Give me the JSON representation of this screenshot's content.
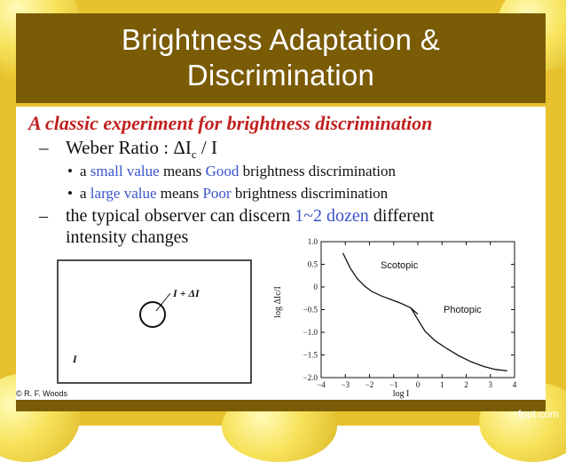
{
  "title_line1": "Brightness Adaptation &",
  "title_line2": "Discrimination",
  "headline": "A classic experiment for brightness discrimination",
  "bullets": {
    "weber": "Weber Ratio : ΔI",
    "weber_sub": "c",
    "weber_tail": " / I",
    "small_pre": "a ",
    "small_hl": "small value",
    "small_mid": " means ",
    "small_hl2": "Good",
    "small_post": " brightness discrimination",
    "large_pre": "a ",
    "large_hl": "large value",
    "large_mid": " means ",
    "large_hl2": "Poor",
    "large_post": " brightness discrimination",
    "observer_pre": "the typical observer can discern ",
    "observer_hl": "1~2 dozen",
    "observer_post": " different",
    "observer_line2": "intensity changes"
  },
  "diagram": {
    "inner_label": "I + ΔI",
    "outer_label": "I"
  },
  "footer_credit": "© R. F. Woods",
  "brand": "fppt.com",
  "chart_data": {
    "type": "line",
    "xlabel": "log I",
    "ylabel": "log ΔIc/I",
    "xlim": [
      -4,
      4
    ],
    "ylim": [
      -2.0,
      1.0
    ],
    "xticks": [
      "-4",
      "-3",
      "-2",
      "-1",
      "0",
      "1",
      "2",
      "3",
      "4"
    ],
    "yticks": [
      "1.0",
      "0.5",
      "0",
      "-0.5",
      "-1.0",
      "-1.5",
      "-2.0"
    ],
    "series": [
      {
        "name": "Scotopic",
        "x": [
          -3.1,
          -2.8,
          -2.5,
          -2.2,
          -1.9,
          -1.5,
          -1.1,
          -0.7,
          -0.3,
          0.0
        ],
        "y": [
          0.75,
          0.42,
          0.18,
          0.02,
          -0.1,
          -0.2,
          -0.28,
          -0.36,
          -0.46,
          -0.6
        ]
      },
      {
        "name": "Photopic",
        "x": [
          -0.3,
          0.0,
          0.3,
          0.7,
          1.2,
          1.7,
          2.2,
          2.7,
          3.2,
          3.7
        ],
        "y": [
          -0.45,
          -0.72,
          -0.98,
          -1.18,
          -1.36,
          -1.52,
          -1.65,
          -1.75,
          -1.82,
          -1.85
        ]
      }
    ],
    "annotations": [
      "Scotopic",
      "Photopic"
    ]
  }
}
